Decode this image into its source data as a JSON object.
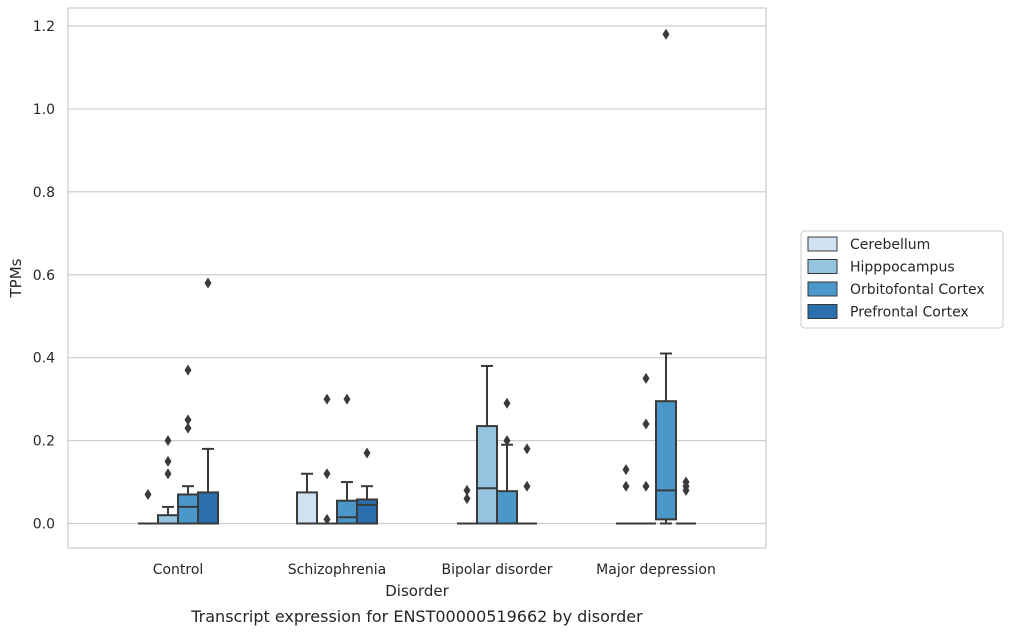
{
  "chart_data": {
    "type": "box",
    "caption": "Transcript expression for ENST00000519662 by disorder",
    "xlabel": "Disorder",
    "ylabel": "TPMs",
    "ylim": [
      -0.06,
      1.24
    ],
    "yticks": [
      "0.0",
      "0.2",
      "0.4",
      "0.6",
      "0.8",
      "1.0",
      "1.2"
    ],
    "ytick_values": [
      0.0,
      0.2,
      0.4,
      0.6,
      0.8,
      1.0,
      1.2
    ],
    "grid": true,
    "legend_position": "center-right",
    "categories": [
      "Control",
      "Schizophrenia",
      "Bipolar disorder",
      "Major depression"
    ],
    "series": [
      {
        "name": "Cerebellum",
        "color": "#d0e1f2",
        "boxes": [
          {
            "category": "Control",
            "q1": 0.0,
            "median": 0.0,
            "q3": 0.0,
            "whisker_low": 0.0,
            "whisker_high": 0.0,
            "outliers": [
              0.07
            ]
          },
          {
            "category": "Schizophrenia",
            "q1": 0.0,
            "median": 0.0,
            "q3": 0.075,
            "whisker_low": 0.0,
            "whisker_high": 0.12,
            "outliers": []
          },
          {
            "category": "Bipolar disorder",
            "q1": 0.0,
            "median": 0.0,
            "q3": 0.0,
            "whisker_low": 0.0,
            "whisker_high": 0.0,
            "outliers": [
              0.08,
              0.06
            ]
          },
          {
            "category": "Major depression",
            "q1": 0.0,
            "median": 0.0,
            "q3": 0.0,
            "whisker_low": 0.0,
            "whisker_high": 0.0,
            "outliers": [
              0.13,
              0.09
            ]
          }
        ]
      },
      {
        "name": "Hipppocampus",
        "color": "#94c4df",
        "boxes": [
          {
            "category": "Control",
            "q1": 0.0,
            "median": 0.0,
            "q3": 0.02,
            "whisker_low": 0.0,
            "whisker_high": 0.04,
            "outliers": [
              0.2,
              0.15,
              0.12
            ]
          },
          {
            "category": "Schizophrenia",
            "q1": 0.0,
            "median": 0.0,
            "q3": 0.0,
            "whisker_low": 0.0,
            "whisker_high": 0.0,
            "outliers": [
              0.3,
              0.12,
              0.01
            ]
          },
          {
            "category": "Bipolar disorder",
            "q1": 0.0,
            "median": 0.085,
            "q3": 0.235,
            "whisker_low": 0.0,
            "whisker_high": 0.38,
            "outliers": []
          },
          {
            "category": "Major depression",
            "q1": 0.0,
            "median": 0.0,
            "q3": 0.0,
            "whisker_low": 0.0,
            "whisker_high": 0.0,
            "outliers": [
              0.35,
              0.24,
              0.09
            ]
          }
        ]
      },
      {
        "name": "Orbitofontal Cortex",
        "color": "#4a98c9",
        "boxes": [
          {
            "category": "Control",
            "q1": 0.0,
            "median": 0.04,
            "q3": 0.07,
            "whisker_low": 0.0,
            "whisker_high": 0.09,
            "outliers": [
              0.37,
              0.25,
              0.23
            ]
          },
          {
            "category": "Schizophrenia",
            "q1": 0.0,
            "median": 0.015,
            "q3": 0.055,
            "whisker_low": 0.0,
            "whisker_high": 0.1,
            "outliers": [
              0.3
            ]
          },
          {
            "category": "Bipolar disorder",
            "q1": 0.0,
            "median": 0.0,
            "q3": 0.078,
            "whisker_low": 0.0,
            "whisker_high": 0.19,
            "outliers": [
              0.29,
              0.2
            ]
          },
          {
            "category": "Major depression",
            "q1": 0.01,
            "median": 0.08,
            "q3": 0.295,
            "whisker_low": 0.0,
            "whisker_high": 0.41,
            "outliers": [
              1.18
            ]
          }
        ]
      },
      {
        "name": "Prefrontal Cortex",
        "color": "#2a6fae",
        "boxes": [
          {
            "category": "Control",
            "q1": 0.0,
            "median": 0.0,
            "q3": 0.075,
            "whisker_low": 0.0,
            "whisker_high": 0.18,
            "outliers": [
              0.58
            ]
          },
          {
            "category": "Schizophrenia",
            "q1": 0.0,
            "median": 0.045,
            "q3": 0.058,
            "whisker_low": 0.0,
            "whisker_high": 0.09,
            "outliers": [
              0.17
            ]
          },
          {
            "category": "Bipolar disorder",
            "q1": 0.0,
            "median": 0.0,
            "q3": 0.0,
            "whisker_low": 0.0,
            "whisker_high": 0.0,
            "outliers": [
              0.18,
              0.09
            ]
          },
          {
            "category": "Major depression",
            "q1": 0.0,
            "median": 0.0,
            "q3": 0.0,
            "whisker_low": 0.0,
            "whisker_high": 0.0,
            "outliers": [
              0.1,
              0.09,
              0.08
            ]
          }
        ]
      }
    ]
  }
}
